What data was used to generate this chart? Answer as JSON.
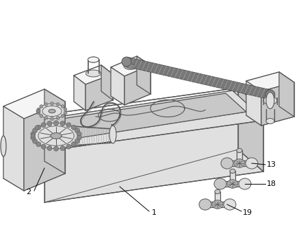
{
  "bg_color": "#ffffff",
  "lc": "#555555",
  "lw": 0.9,
  "fc_light": "#f5f5f5",
  "fc_mid": "#e0e0e0",
  "fc_dark": "#c8c8c8",
  "fc_darkest": "#b0b0b0",
  "rod_color": "#888888",
  "label_fs": 8,
  "labels": [
    "1",
    "2",
    "13",
    "18",
    "19"
  ]
}
